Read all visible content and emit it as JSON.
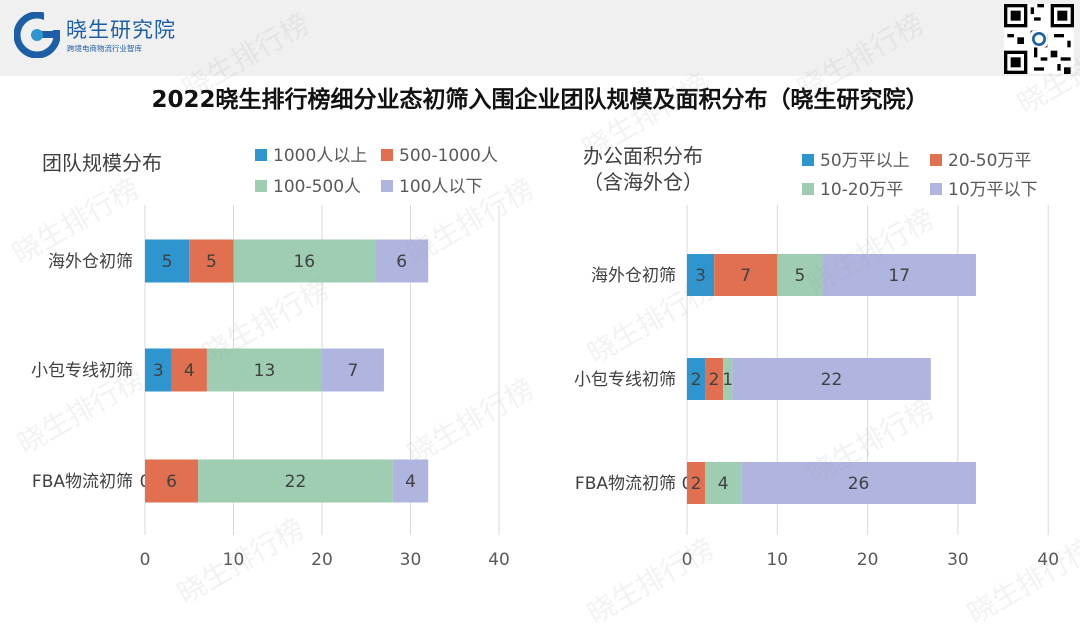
{
  "header": {
    "brand_name": "晓生研究院",
    "brand_tagline": "跨境电商物流行业智库"
  },
  "title": "2022晓生排行榜细分业态初筛入围企业团队规模及面积分布（晓生研究院）",
  "watermark_text": "晓生排行榜",
  "icons": {
    "logo": "xiaosheng-g-logo-icon",
    "qr": "qr-code-icon"
  },
  "colors": {
    "brand": "#1d5fa6",
    "series": [
      "#2e95cf",
      "#e0704f",
      "#9fcdb2",
      "#b0b5df"
    ]
  },
  "chart_data": [
    {
      "type": "bar",
      "orientation": "horizontal",
      "stacked": true,
      "title": "团队规模分布",
      "categories": [
        "海外仓初筛",
        "小包专线初筛",
        "FBA物流初筛"
      ],
      "series": [
        {
          "name": "1000人以上",
          "values": [
            5,
            3,
            0
          ]
        },
        {
          "name": "500-1000人",
          "values": [
            5,
            4,
            6
          ]
        },
        {
          "name": "100-500人",
          "values": [
            16,
            13,
            22
          ]
        },
        {
          "name": "100人以下",
          "values": [
            6,
            7,
            4
          ]
        }
      ],
      "xlim": [
        0,
        40
      ],
      "ticks": [
        0,
        10,
        20,
        30,
        40
      ],
      "grid": true,
      "legend": "top"
    },
    {
      "type": "bar",
      "orientation": "horizontal",
      "stacked": true,
      "title": "办公面积分布",
      "subtitle": "（含海外仓）",
      "categories": [
        "海外仓初筛",
        "小包专线初筛",
        "FBA物流初筛"
      ],
      "series": [
        {
          "name": "50万平以上",
          "values": [
            3,
            2,
            0
          ]
        },
        {
          "name": "20-50万平",
          "values": [
            7,
            2,
            2
          ]
        },
        {
          "name": "10-20万平",
          "values": [
            5,
            1,
            4
          ]
        },
        {
          "name": "10万平以下",
          "values": [
            17,
            22,
            26
          ]
        }
      ],
      "xlim": [
        0,
        40
      ],
      "ticks": [
        0,
        10,
        20,
        30,
        40
      ],
      "grid": true,
      "legend": "top"
    }
  ]
}
